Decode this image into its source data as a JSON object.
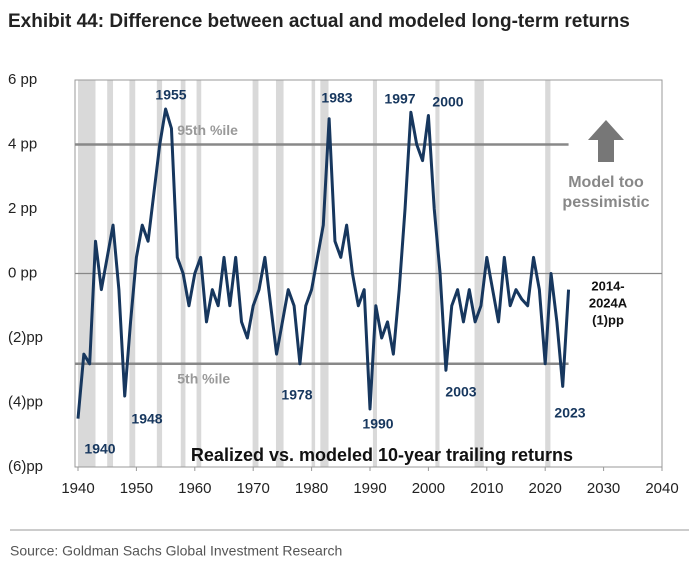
{
  "chart_data": {
    "type": "line",
    "title": "Exhibit 44: Difference between actual and modeled long-term returns",
    "subtitle": "Realized vs. modeled 10-year trailing returns",
    "source": "Source: Goldman Sachs Global Investment Research",
    "x": [
      1940,
      1941,
      1942,
      1943,
      1944,
      1945,
      1946,
      1947,
      1948,
      1949,
      1950,
      1951,
      1952,
      1953,
      1954,
      1955,
      1956,
      1957,
      1958,
      1959,
      1960,
      1961,
      1962,
      1963,
      1964,
      1965,
      1966,
      1967,
      1968,
      1969,
      1970,
      1971,
      1972,
      1973,
      1974,
      1975,
      1976,
      1977,
      1978,
      1979,
      1980,
      1981,
      1982,
      1983,
      1984,
      1985,
      1986,
      1987,
      1988,
      1989,
      1990,
      1991,
      1992,
      1993,
      1994,
      1995,
      1996,
      1997,
      1998,
      1999,
      2000,
      2001,
      2002,
      2003,
      2004,
      2005,
      2006,
      2007,
      2008,
      2009,
      2010,
      2011,
      2012,
      2013,
      2014,
      2015,
      2016,
      2017,
      2018,
      2019,
      2020,
      2021,
      2022,
      2023,
      2024
    ],
    "series": [
      {
        "name": "Realized vs. modeled 10-year trailing returns",
        "color": "#17375e",
        "values": [
          -4.5,
          -2.5,
          -2.8,
          1.0,
          -0.5,
          0.5,
          1.5,
          -0.5,
          -3.8,
          -1.5,
          0.5,
          1.5,
          1.0,
          2.5,
          4.0,
          5.1,
          4.5,
          0.5,
          0.0,
          -1.0,
          0.0,
          0.5,
          -1.5,
          -0.5,
          -1.0,
          0.5,
          -1.0,
          0.5,
          -1.5,
          -2.0,
          -1.0,
          -0.5,
          0.5,
          -1.0,
          -2.5,
          -1.5,
          -0.5,
          -1.0,
          -2.8,
          -1.0,
          -0.5,
          0.5,
          1.5,
          4.8,
          1.0,
          0.5,
          1.5,
          0.0,
          -1.0,
          -0.5,
          -4.2,
          -1.0,
          -2.0,
          -1.5,
          -2.5,
          -0.5,
          2.0,
          5.0,
          4.0,
          3.5,
          4.9,
          2.0,
          0.0,
          -3.0,
          -1.0,
          -0.5,
          -1.5,
          -0.5,
          -1.5,
          -1.0,
          0.5,
          -0.5,
          -1.5,
          0.5,
          -1.0,
          -0.5,
          -0.8,
          -1.0,
          0.5,
          -0.5,
          -2.8,
          0.0,
          -1.5,
          -3.5,
          -0.5
        ]
      }
    ],
    "xlim": [
      1940,
      2040
    ],
    "xticks": [
      1940,
      1950,
      1960,
      1970,
      1980,
      1990,
      2000,
      2010,
      2020,
      2030,
      2040
    ],
    "ylim": [
      -6,
      6
    ],
    "yticks": [
      {
        "value": -6,
        "label": "(6)pp"
      },
      {
        "value": -4,
        "label": "(4)pp"
      },
      {
        "value": -2,
        "label": "(2)pp"
      },
      {
        "value": 0,
        "label": "0 pp"
      },
      {
        "value": 2,
        "label": "2 pp"
      },
      {
        "value": 4,
        "label": "4 pp"
      },
      {
        "value": 6,
        "label": "6 pp"
      }
    ],
    "recessions": [
      [
        1940,
        1943
      ],
      [
        1945,
        1946
      ],
      [
        1948.8,
        1949.8
      ],
      [
        1953.5,
        1954.4
      ],
      [
        1957.6,
        1958.4
      ],
      [
        1960.3,
        1961.1
      ],
      [
        1969.9,
        1970.9
      ],
      [
        1973.9,
        1975.2
      ],
      [
        1980,
        1980.6
      ],
      [
        1981.5,
        1982.9
      ],
      [
        1990.5,
        1991.2
      ],
      [
        2001.2,
        2001.9
      ],
      [
        2007.9,
        2009.5
      ],
      [
        2020,
        2020.9
      ]
    ],
    "reference_lines": [
      {
        "label": "95th %ile",
        "value": 4,
        "end": 2024
      },
      {
        "label": "5th %ile",
        "value": -2.8,
        "end": 2024
      }
    ],
    "annotations": [
      "1940",
      "1948",
      "1955",
      "1978",
      "1983",
      "1990",
      "1997",
      "2000",
      "2003",
      "2023"
    ],
    "callout": "Model too pessimistic",
    "end_label": [
      "2014-",
      "2024A",
      "(1)pp"
    ]
  }
}
